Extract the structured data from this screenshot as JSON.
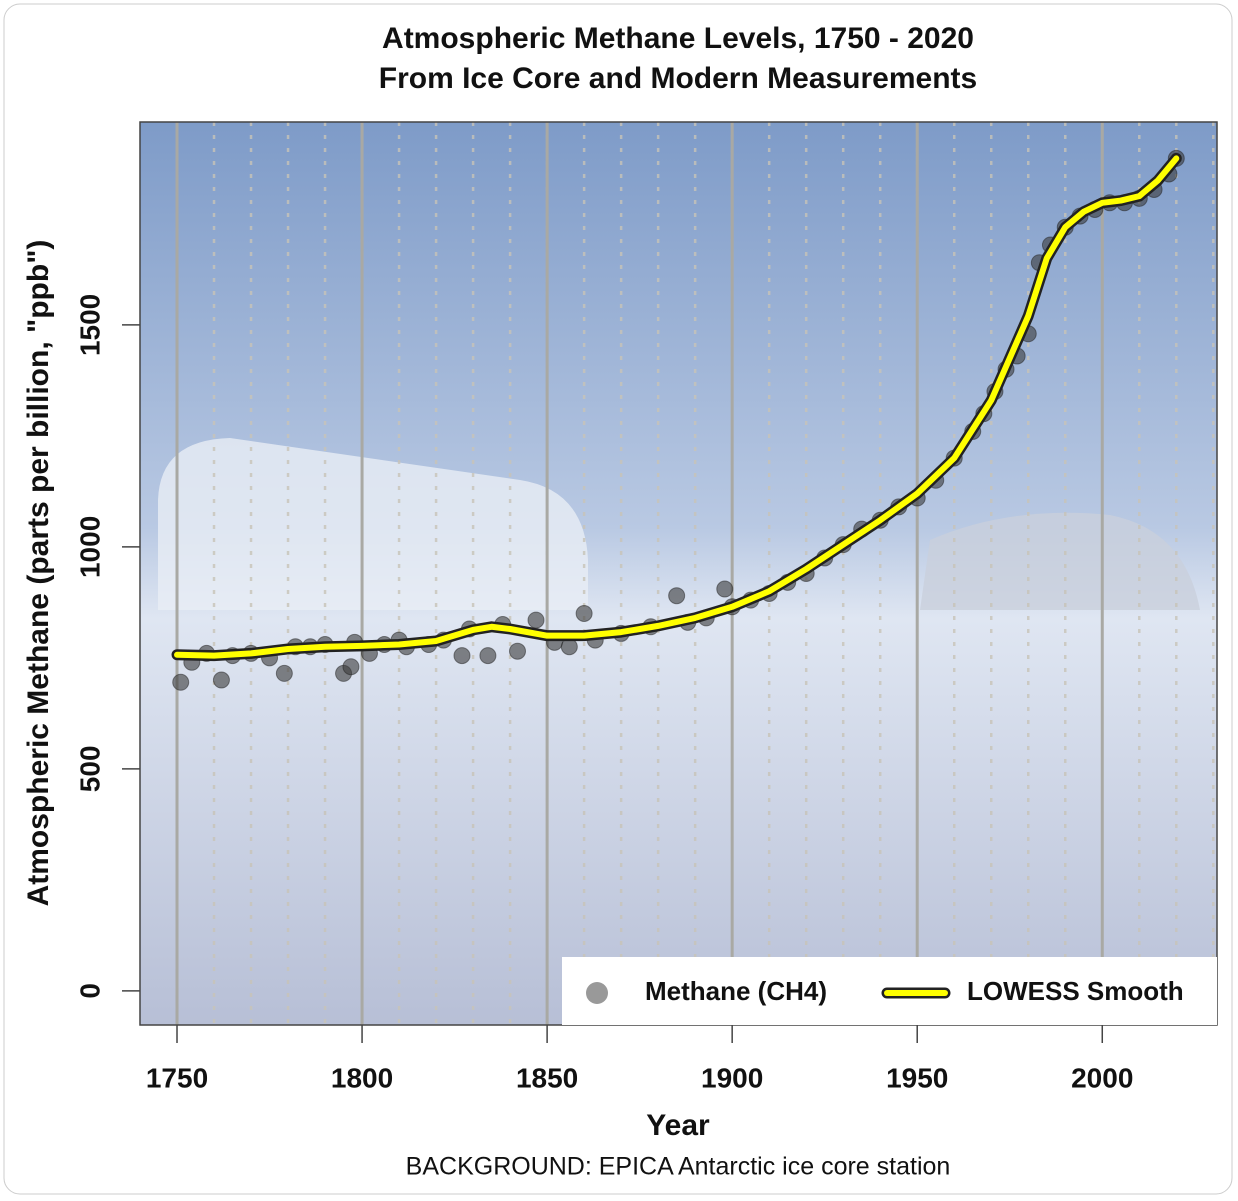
{
  "chart_data": {
    "type": "scatter",
    "title": "Atmospheric Methane Levels, 1750 - 2020",
    "subtitle": "From Ice Core and Modern Measurements",
    "x_label": "Year",
    "y_label": "Atmospheric Methane (parts per billion, \"ppb\")",
    "caption": "BACKGROUND: EPICA Antarctic ice core station",
    "xlim": [
      1740,
      2031
    ],
    "ylim": [
      -77,
      1957
    ],
    "xticks": [
      1750,
      1800,
      1850,
      1900,
      1950,
      2000
    ],
    "yticks": [
      0,
      500,
      1000,
      1500
    ],
    "grid": true,
    "legend": "bottom-right",
    "series": [
      {
        "name": "Methane (CH4)",
        "type": "scatter",
        "color": "#3a3a3a",
        "x": [
          1751,
          1754,
          1758,
          1762,
          1765,
          1770,
          1775,
          1779,
          1782,
          1786,
          1790,
          1795,
          1797,
          1798,
          1802,
          1806,
          1810,
          1812,
          1818,
          1822,
          1827,
          1829,
          1834,
          1838,
          1842,
          1847,
          1852,
          1856,
          1860,
          1863,
          1870,
          1878,
          1885,
          1888,
          1893,
          1898,
          1900,
          1905,
          1910,
          1915,
          1920,
          1925,
          1930,
          1935,
          1940,
          1945,
          1950,
          1955,
          1960,
          1965,
          1968,
          1971,
          1974,
          1977,
          1980,
          1983,
          1986,
          1990,
          1994,
          1998,
          2002,
          2006,
          2010,
          2014,
          2018,
          2020
        ],
        "values": [
          695,
          740,
          760,
          700,
          755,
          760,
          750,
          715,
          775,
          775,
          780,
          715,
          730,
          785,
          760,
          780,
          790,
          775,
          780,
          790,
          755,
          815,
          755,
          825,
          765,
          835,
          785,
          775,
          850,
          790,
          805,
          820,
          890,
          830,
          840,
          905,
          865,
          880,
          895,
          920,
          940,
          975,
          1005,
          1040,
          1060,
          1090,
          1110,
          1150,
          1200,
          1260,
          1300,
          1350,
          1400,
          1430,
          1480,
          1640,
          1680,
          1720,
          1745,
          1760,
          1775,
          1775,
          1785,
          1805,
          1840,
          1875
        ]
      },
      {
        "name": "LOWESS Smooth",
        "type": "line",
        "color": "#ffff00",
        "x": [
          1750,
          1760,
          1770,
          1780,
          1790,
          1800,
          1810,
          1820,
          1830,
          1835,
          1840,
          1850,
          1860,
          1870,
          1880,
          1890,
          1900,
          1910,
          1920,
          1930,
          1940,
          1950,
          1960,
          1970,
          1980,
          1985,
          1990,
          1995,
          2000,
          2005,
          2010,
          2015,
          2020
        ],
        "values": [
          757,
          755,
          760,
          770,
          775,
          777,
          780,
          788,
          813,
          820,
          815,
          800,
          800,
          808,
          822,
          840,
          865,
          900,
          950,
          1005,
          1060,
          1120,
          1200,
          1330,
          1520,
          1650,
          1720,
          1755,
          1775,
          1780,
          1790,
          1825,
          1875
        ]
      }
    ]
  }
}
